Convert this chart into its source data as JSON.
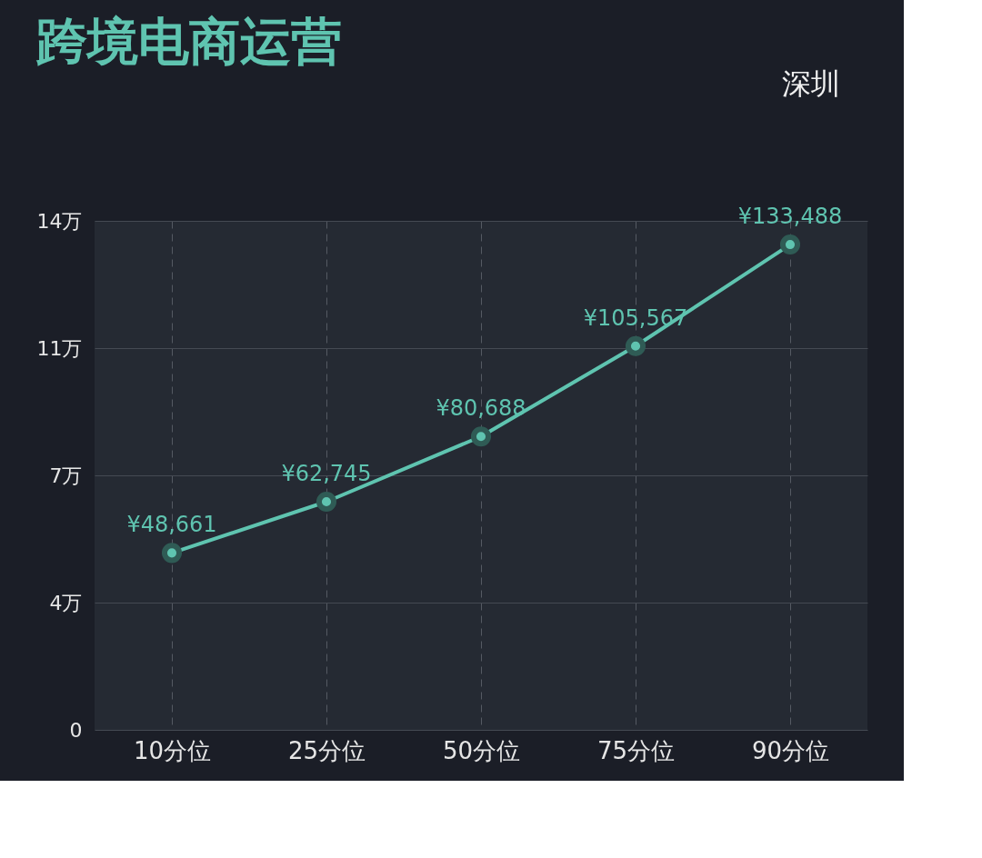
{
  "chart_data": {
    "type": "line",
    "title": "跨境电商运营",
    "annotations": [
      "深圳"
    ],
    "categories": [
      "10分位",
      "25分位",
      "50分位",
      "75分位",
      "90分位"
    ],
    "series": [
      {
        "color": "#5fc4b0",
        "values": [
          4.8661,
          6.2745,
          8.0688,
          10.5567,
          13.3488
        ]
      }
    ],
    "value_labels": [
      "¥48,661",
      "¥62,745",
      "¥80,688",
      "¥105,567",
      "¥133,488"
    ],
    "ylim": [
      0,
      14
    ],
    "yticks": [
      0,
      {
        "value": 3.5,
        "label": "4万"
      },
      {
        "value": 7,
        "label": "7万"
      },
      {
        "value": 10.5,
        "label": "11万"
      },
      {
        "value": 14,
        "label": "14万"
      }
    ],
    "grid": true,
    "marker": "circle",
    "line_style": "solid"
  }
}
